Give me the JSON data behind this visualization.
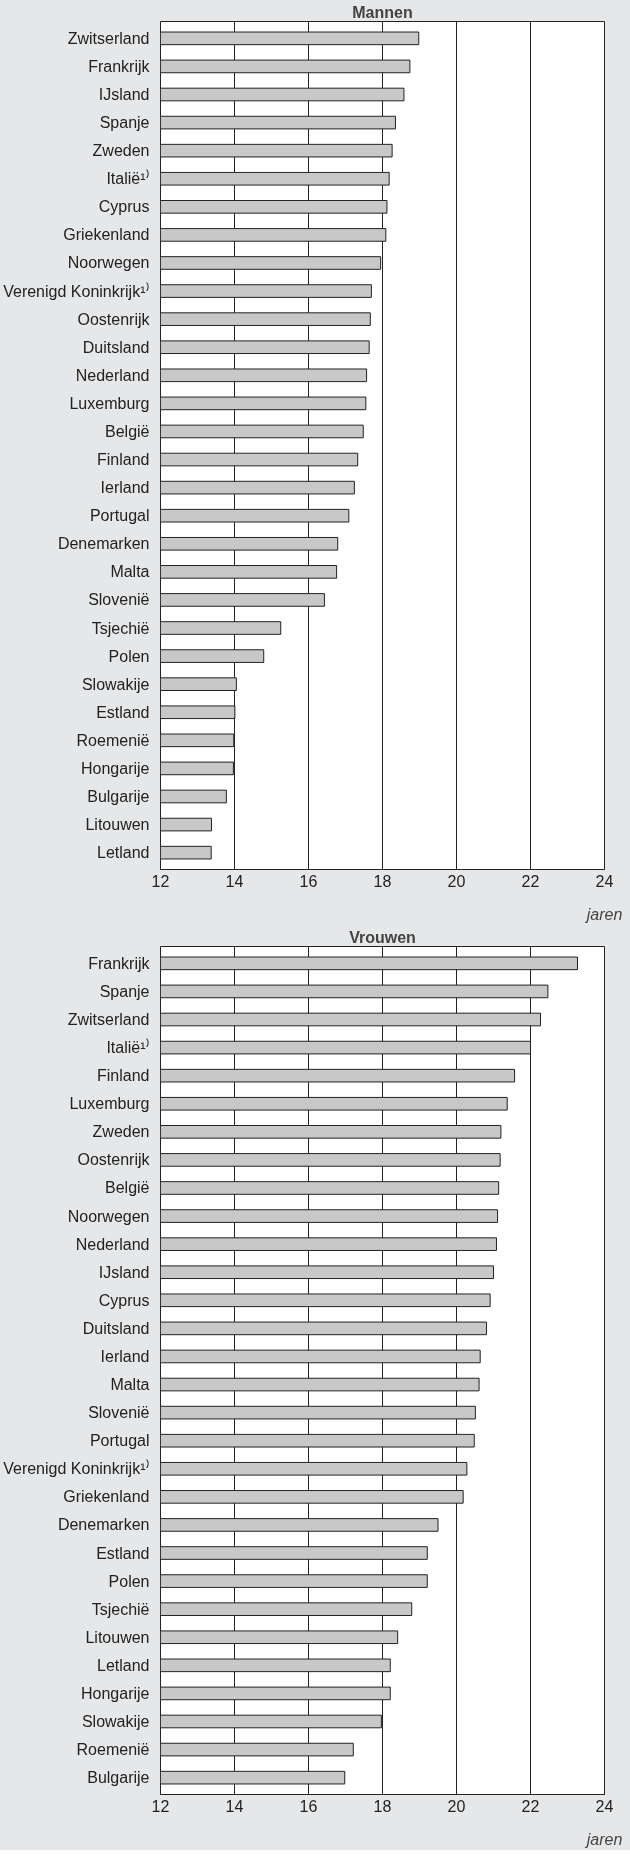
{
  "chart_data": [
    {
      "type": "bar",
      "orientation": "horizontal",
      "title": "Mannen",
      "categories": [
        "Zwitserland",
        "Frankrijk",
        "IJsland",
        "Spanje",
        "Zweden",
        "Italië¹⁾",
        "Cyprus",
        "Griekenland",
        "Noorwegen",
        "Verenigd Koninkrijk¹⁾",
        "Oostenrijk",
        "Duitsland",
        "Nederland",
        "Luxemburg",
        "België",
        "Finland",
        "Ierland",
        "Portugal",
        "Denemarken",
        "Malta",
        "Slovenië",
        "Tsjechië",
        "Polen",
        "Slowakije",
        "Estland",
        "Roemenië",
        "Hongarije",
        "Bulgarije",
        "Litouwen",
        "Letland"
      ],
      "values": [
        18.98,
        18.74,
        18.58,
        18.35,
        18.26,
        18.18,
        18.12,
        18.09,
        17.95,
        17.7,
        17.67,
        17.64,
        17.57,
        17.55,
        17.48,
        17.33,
        17.24,
        17.09,
        16.79,
        16.76,
        16.43,
        15.25,
        14.79,
        14.05,
        14.01,
        13.98,
        13.97,
        13.78,
        13.38,
        13.37
      ],
      "color": "#c8c8c8",
      "xlim": [
        12,
        24
      ],
      "xticks": [
        12,
        14,
        16,
        18,
        20,
        22,
        24
      ],
      "xlabel": "jaren",
      "grid": "x"
    },
    {
      "type": "bar",
      "orientation": "horizontal",
      "title": "Vrouwen",
      "categories": [
        "Frankrijk",
        "Spanje",
        "Zwitserland",
        "Italië¹⁾",
        "Finland",
        "Luxemburg",
        "Zweden",
        "Oostenrijk",
        "België",
        "Noorwegen",
        "Nederland",
        "IJsland",
        "Cyprus",
        "Duitsland",
        "Ierland",
        "Malta",
        "Slovenië",
        "Portugal",
        "Verenigd Koninkrijk¹⁾",
        "Griekenland",
        "Denemarken",
        "Estland",
        "Polen",
        "Tsjechië",
        "Litouwen",
        "Letland",
        "Hongarije",
        "Slowakije",
        "Roemenië",
        "Bulgarije"
      ],
      "values": [
        23.27,
        22.47,
        22.27,
        22.0,
        21.57,
        21.37,
        21.2,
        21.18,
        21.14,
        21.11,
        21.08,
        21.0,
        20.91,
        20.81,
        20.64,
        20.61,
        20.51,
        20.48,
        20.28,
        20.18,
        19.5,
        19.21,
        19.21,
        18.79,
        18.41,
        18.21,
        18.21,
        17.97,
        17.21,
        16.98
      ],
      "color": "#c8c8c8",
      "xlim": [
        12,
        24
      ],
      "xticks": [
        12,
        14,
        16,
        18,
        20,
        22,
        24
      ],
      "xlabel": "jaren",
      "grid": "x"
    }
  ]
}
